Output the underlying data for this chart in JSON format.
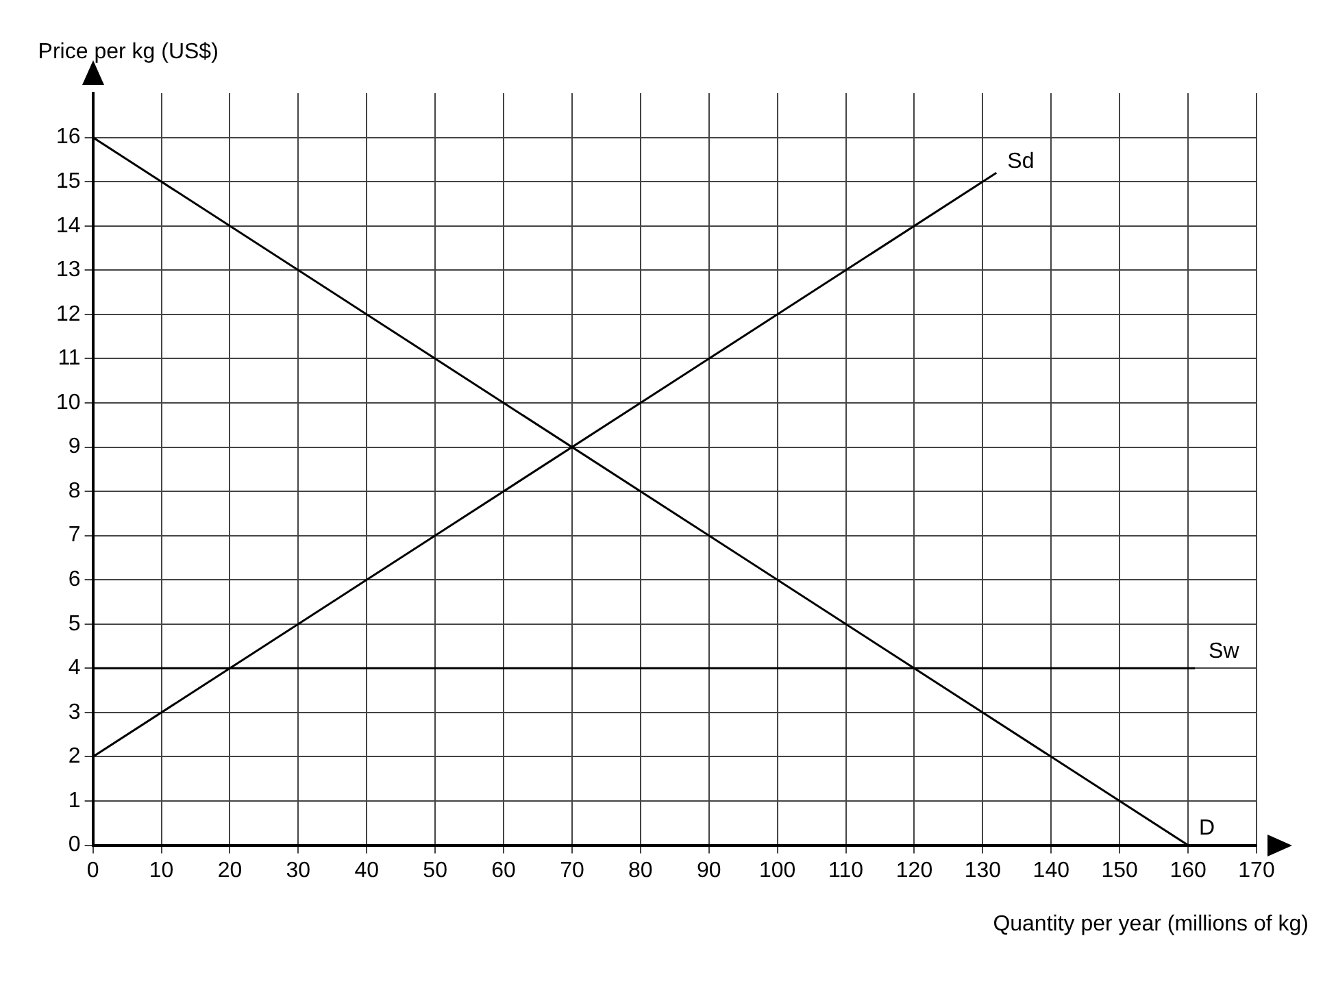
{
  "chart_data": {
    "type": "line",
    "xlabel": "Quantity per year (millions of kg)",
    "ylabel": "Price per kg (US$)",
    "series": [
      {
        "name": "D",
        "color": "#000000",
        "x": [
          0,
          160
        ],
        "values": [
          16,
          0
        ]
      },
      {
        "name": "Sd",
        "color": "#000000",
        "x": [
          0,
          132
        ],
        "values": [
          2,
          15.2
        ]
      },
      {
        "name": "Sw",
        "color": "#000000",
        "x": [
          0,
          161
        ],
        "values": [
          4,
          4
        ]
      }
    ],
    "xlim": [
      0,
      170
    ],
    "ylim": [
      0,
      17
    ],
    "xticks": [
      0,
      10,
      20,
      30,
      40,
      50,
      60,
      70,
      80,
      90,
      100,
      110,
      120,
      130,
      140,
      150,
      160,
      170
    ],
    "yticks": [
      0,
      1,
      2,
      3,
      4,
      5,
      6,
      7,
      8,
      9,
      10,
      11,
      12,
      13,
      14,
      15,
      16
    ],
    "grid": true,
    "legend": false,
    "marker": "none",
    "line_style": "solid"
  }
}
